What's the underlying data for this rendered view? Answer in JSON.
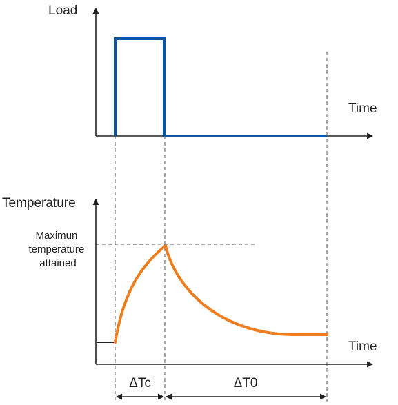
{
  "top_chart": {
    "y_label": "Load",
    "x_label": "Time"
  },
  "bottom_chart": {
    "y_label": "Temperature",
    "x_label": "Time",
    "annotation": [
      "Maximun",
      "temperature",
      "attained"
    ]
  },
  "intervals": {
    "heating": "ΔTc",
    "cooling": "ΔT0"
  },
  "colors": {
    "load_curve": "#0a55a3",
    "temperature_curve": "#ee7d1f",
    "axes": "#222222",
    "guides": "#555555"
  },
  "icons": [
    "arrow-head-icon"
  ]
}
